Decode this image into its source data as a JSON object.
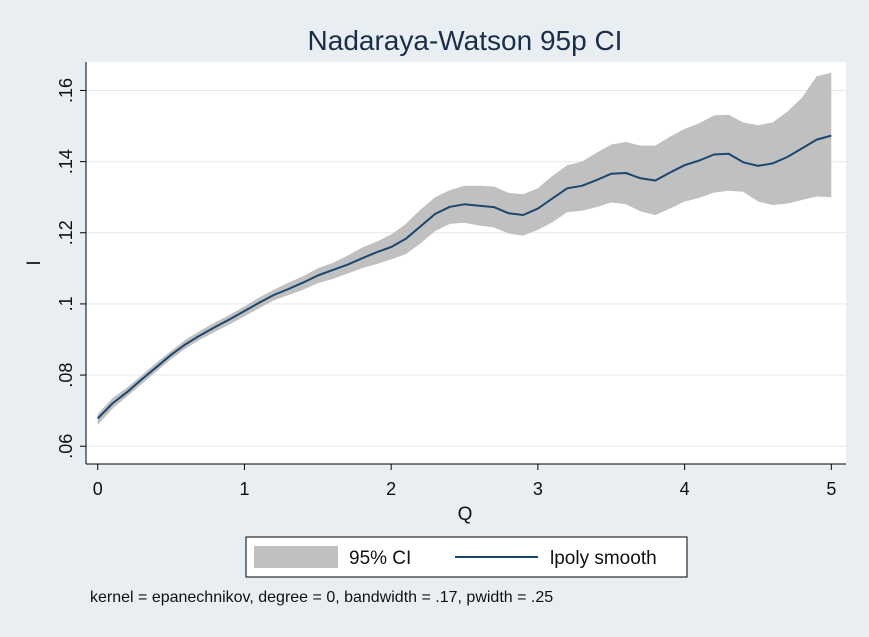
{
  "chart_data": {
    "type": "area",
    "title": "Nadaraya-Watson 95p CI",
    "xlabel": "Q",
    "ylabel": "I",
    "xlim": [
      -0.08,
      5.1
    ],
    "ylim": [
      0.055,
      0.168
    ],
    "xticks": [
      0,
      1,
      2,
      3,
      4,
      5
    ],
    "xtick_labels": [
      "0",
      "1",
      "2",
      "3",
      "4",
      "5"
    ],
    "yticks": [
      0.06,
      0.08,
      0.1,
      0.12,
      0.14,
      0.16
    ],
    "ytick_labels": [
      ".06",
      ".08",
      ".1",
      ".12",
      ".14",
      ".16"
    ],
    "grid": true,
    "legend_position": "bottom",
    "legend": [
      "95% CI",
      "lpoly smooth"
    ],
    "note": "kernel = epanechnikov, degree = 0, bandwidth = .17, pwidth = .25",
    "colors": {
      "background": "#e9eef2",
      "plot_bg": "#ffffff",
      "band": "#c0c0c0",
      "line": "#1a476f",
      "title": "#1a2e4a",
      "text": "#111111"
    },
    "series": [
      {
        "name": "95% CI",
        "x": [
          0,
          0.1,
          0.2,
          0.3,
          0.4,
          0.5,
          0.6,
          0.7,
          0.8,
          0.9,
          1.0,
          1.1,
          1.2,
          1.3,
          1.4,
          1.5,
          1.6,
          1.7,
          1.8,
          1.9,
          2.0,
          2.1,
          2.2,
          2.3,
          2.4,
          2.5,
          2.6,
          2.7,
          2.8,
          2.9,
          3.0,
          3.1,
          3.2,
          3.3,
          3.4,
          3.5,
          3.6,
          3.7,
          3.8,
          3.9,
          4.0,
          4.1,
          4.2,
          4.3,
          4.4,
          4.5,
          4.6,
          4.7,
          4.8,
          4.9,
          5.0
        ],
        "lower": [
          0.066,
          0.0705,
          0.074,
          0.0775,
          0.081,
          0.0845,
          0.0875,
          0.09,
          0.0922,
          0.0943,
          0.0965,
          0.0988,
          0.101,
          0.1025,
          0.104,
          0.1058,
          0.107,
          0.1085,
          0.11,
          0.1112,
          0.1125,
          0.114,
          0.117,
          0.1205,
          0.1225,
          0.1228,
          0.122,
          0.1215,
          0.1198,
          0.1192,
          0.1208,
          0.123,
          0.1258,
          0.1262,
          0.1272,
          0.1285,
          0.128,
          0.126,
          0.125,
          0.1268,
          0.1288,
          0.1298,
          0.1313,
          0.1318,
          0.1315,
          0.1288,
          0.1278,
          0.1282,
          0.1292,
          0.1302,
          0.13
        ],
        "upper": [
          0.069,
          0.0735,
          0.0765,
          0.08,
          0.0835,
          0.0868,
          0.09,
          0.0925,
          0.0948,
          0.097,
          0.0993,
          0.1018,
          0.104,
          0.106,
          0.1078,
          0.11,
          0.1115,
          0.1135,
          0.1158,
          0.1175,
          0.1195,
          0.1225,
          0.1265,
          0.13,
          0.132,
          0.1332,
          0.1332,
          0.133,
          0.1312,
          0.1308,
          0.1325,
          0.136,
          0.139,
          0.14,
          0.1425,
          0.1448,
          0.1455,
          0.1445,
          0.1445,
          0.147,
          0.1492,
          0.1508,
          0.153,
          0.1532,
          0.151,
          0.1502,
          0.151,
          0.154,
          0.158,
          0.164,
          0.165
        ]
      },
      {
        "name": "lpoly smooth",
        "x": [
          0,
          0.1,
          0.2,
          0.3,
          0.4,
          0.5,
          0.6,
          0.7,
          0.8,
          0.9,
          1.0,
          1.1,
          1.2,
          1.3,
          1.4,
          1.5,
          1.6,
          1.7,
          1.8,
          1.9,
          2.0,
          2.1,
          2.2,
          2.3,
          2.4,
          2.5,
          2.6,
          2.7,
          2.8,
          2.9,
          3.0,
          3.1,
          3.2,
          3.3,
          3.4,
          3.5,
          3.6,
          3.7,
          3.8,
          3.9,
          4.0,
          4.1,
          4.2,
          4.3,
          4.4,
          4.5,
          4.6,
          4.7,
          4.8,
          4.9,
          5.0
        ],
        "values": [
          0.0678,
          0.072,
          0.0752,
          0.0788,
          0.0822,
          0.0857,
          0.0887,
          0.0912,
          0.0935,
          0.0957,
          0.098,
          0.1003,
          0.1025,
          0.1042,
          0.106,
          0.108,
          0.1095,
          0.111,
          0.1128,
          0.1145,
          0.116,
          0.1183,
          0.1218,
          0.1253,
          0.1273,
          0.128,
          0.1276,
          0.1272,
          0.1255,
          0.125,
          0.1268,
          0.1297,
          0.1325,
          0.1332,
          0.1348,
          0.1366,
          0.1368,
          0.1353,
          0.1347,
          0.1369,
          0.139,
          0.1403,
          0.142,
          0.1422,
          0.1398,
          0.1388,
          0.1395,
          0.1413,
          0.1437,
          0.1462,
          0.1473
        ]
      }
    ]
  }
}
